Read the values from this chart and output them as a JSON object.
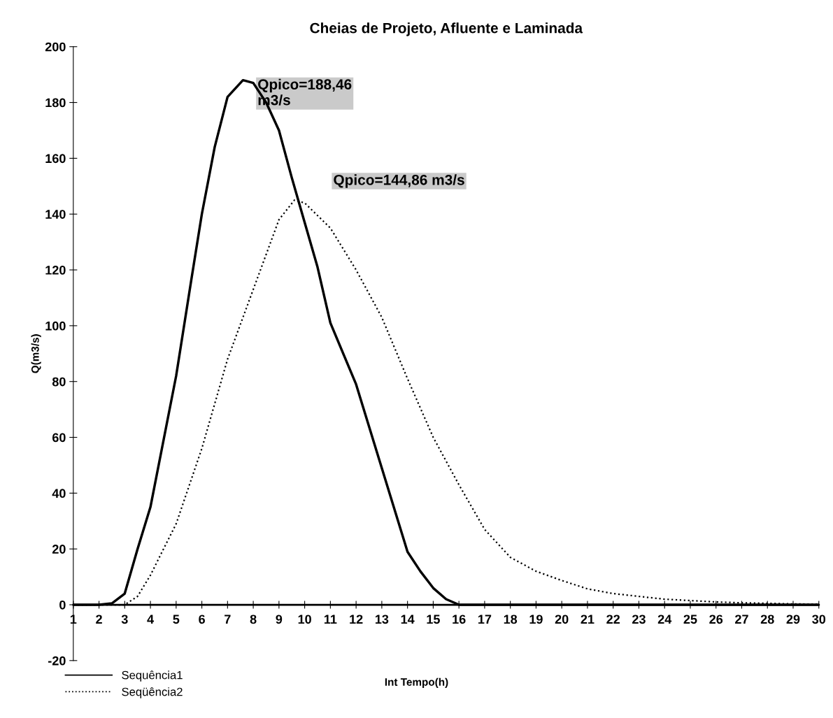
{
  "chart_data": {
    "type": "line",
    "title": "Cheias de Projeto, Afluente e Laminada",
    "xlabel": "Int Tempo(h)",
    "ylabel": "Q(m3/s)",
    "xlim": [
      1,
      30
    ],
    "xticks": [
      1,
      2,
      3,
      4,
      5,
      6,
      7,
      8,
      9,
      10,
      11,
      12,
      13,
      14,
      15,
      16,
      17,
      18,
      19,
      20,
      21,
      22,
      23,
      24,
      25,
      26,
      27,
      28,
      29,
      30
    ],
    "ylim": [
      -20,
      200
    ],
    "yticks": [
      -20,
      0,
      20,
      40,
      60,
      80,
      100,
      120,
      140,
      160,
      180,
      200
    ],
    "grid": false,
    "legend": "bottom left",
    "marker": "none",
    "series": [
      {
        "name": "Sequência1",
        "color": "#000000",
        "line_style": "solid",
        "x": [
          1,
          2,
          2.5,
          3,
          3.5,
          4,
          5,
          5.6,
          6,
          6.5,
          7,
          7.6,
          8,
          8.5,
          9,
          9.5,
          10,
          10.5,
          11,
          12,
          13,
          14,
          14.5,
          15,
          15.5,
          16,
          17,
          18,
          19,
          20,
          21,
          22,
          23,
          24,
          25,
          26,
          27,
          28,
          29,
          30
        ],
        "values": [
          0,
          0,
          0.5,
          4,
          20,
          35,
          82,
          117,
          140,
          164,
          182,
          188,
          187,
          180,
          170,
          153,
          137,
          121,
          101,
          79,
          49,
          19,
          12,
          6,
          2,
          0,
          0,
          0,
          0,
          0,
          0,
          0,
          0,
          0,
          0,
          0,
          0,
          0,
          0,
          0
        ]
      },
      {
        "name": "Seqüência2",
        "color": "#000000",
        "line_style": "dotted",
        "x": [
          1,
          2,
          3,
          3.5,
          4,
          5,
          6,
          7,
          8,
          9,
          9.6,
          10,
          11,
          12,
          13,
          14,
          15,
          16,
          17,
          18,
          19,
          20,
          21,
          22,
          23,
          24,
          25,
          26,
          27,
          28,
          29,
          30
        ],
        "values": [
          0,
          0,
          0,
          3,
          10.6,
          29,
          56,
          88,
          113,
          138,
          145,
          144,
          135,
          120,
          103,
          81,
          60,
          43,
          27,
          17,
          12,
          8.7,
          5.7,
          4,
          3,
          2,
          1.5,
          1,
          0.7,
          0.5,
          0.3,
          0.2
        ]
      }
    ],
    "annotations": [
      {
        "text": "Qpico=188,46\nm3/s",
        "x": 7.6,
        "y": 188.46
      },
      {
        "text": "Qpico=144,86 m3/s",
        "x": 9.6,
        "y": 144.86
      }
    ]
  }
}
